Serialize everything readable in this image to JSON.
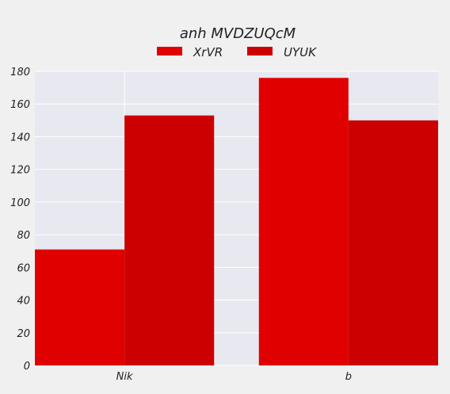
{
  "chart_data": {
    "type": "bar",
    "title": "anh MVDZUQcM",
    "categories": [
      "Nik",
      "b"
    ],
    "series": [
      {
        "name": "XrVR",
        "values": [
          71,
          176
        ],
        "color": "#e00000"
      },
      {
        "name": "UYUK",
        "values": [
          153,
          150
        ],
        "color": "#cc0000"
      }
    ],
    "xlabel": "",
    "ylabel": "",
    "ylim": [
      0,
      180
    ],
    "yticks": [
      0,
      20,
      40,
      60,
      80,
      100,
      120,
      140,
      160,
      180
    ],
    "grid": true,
    "legend": "top-center",
    "plot_background": "#e8e8f0"
  }
}
